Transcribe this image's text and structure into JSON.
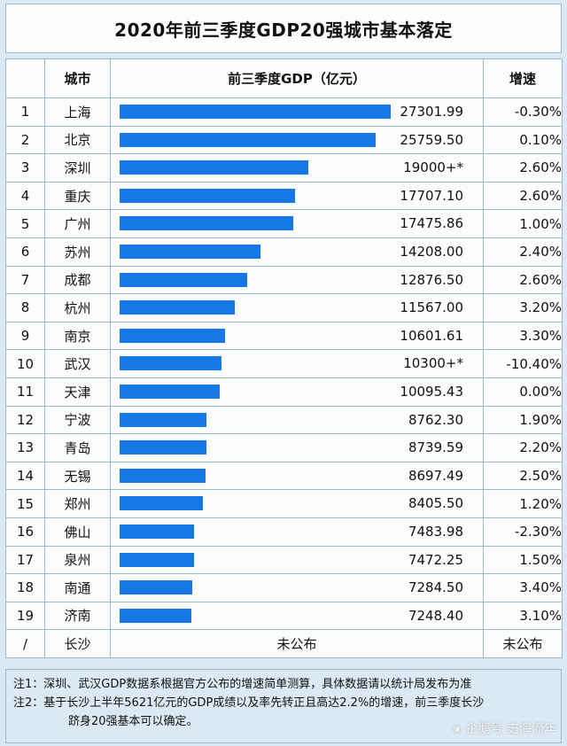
{
  "title": "2020年前三季度GDP20强城市基本落定",
  "headers": {
    "rank": "",
    "city": "城市",
    "gdp": "前三季度GDP（亿元）",
    "growth": "增速"
  },
  "chart_data": {
    "type": "bar",
    "title": "2020年前三季度GDP20强城市基本落定",
    "xlabel": "城市",
    "ylabel": "前三季度GDP（亿元）",
    "categories": [
      "上海",
      "北京",
      "深圳",
      "重庆",
      "广州",
      "苏州",
      "成都",
      "杭州",
      "南京",
      "武汉",
      "天津",
      "宁波",
      "青岛",
      "无锡",
      "郑州",
      "佛山",
      "泉州",
      "南通",
      "济南"
    ],
    "values": [
      27301.99,
      25759.5,
      19000,
      17707.1,
      17475.86,
      14208.0,
      12876.5,
      11567.0,
      10601.61,
      10300,
      10095.43,
      8762.3,
      8739.59,
      8697.49,
      8405.5,
      7483.98,
      7472.25,
      7284.5,
      7248.4
    ],
    "ylim": [
      0,
      27301.99
    ]
  },
  "rows": [
    {
      "rank": "1",
      "city": "上海",
      "gdp": "27301.99",
      "growth": "-0.30%"
    },
    {
      "rank": "2",
      "city": "北京",
      "gdp": "25759.50",
      "growth": "0.10%"
    },
    {
      "rank": "3",
      "city": "深圳",
      "gdp": "19000+*",
      "growth": "2.60%"
    },
    {
      "rank": "4",
      "city": "重庆",
      "gdp": "17707.10",
      "growth": "2.60%"
    },
    {
      "rank": "5",
      "city": "广州",
      "gdp": "17475.86",
      "growth": "1.00%"
    },
    {
      "rank": "6",
      "city": "苏州",
      "gdp": "14208.00",
      "growth": "2.40%"
    },
    {
      "rank": "7",
      "city": "成都",
      "gdp": "12876.50",
      "growth": "2.60%"
    },
    {
      "rank": "8",
      "city": "杭州",
      "gdp": "11567.00",
      "growth": "3.20%"
    },
    {
      "rank": "9",
      "city": "南京",
      "gdp": "10601.61",
      "growth": "3.30%"
    },
    {
      "rank": "10",
      "city": "武汉",
      "gdp": "10300+*",
      "growth": "-10.40%"
    },
    {
      "rank": "11",
      "city": "天津",
      "gdp": "10095.43",
      "growth": "0.00%"
    },
    {
      "rank": "12",
      "city": "宁波",
      "gdp": "8762.30",
      "growth": "1.90%"
    },
    {
      "rank": "13",
      "city": "青岛",
      "gdp": "8739.59",
      "growth": "2.20%"
    },
    {
      "rank": "14",
      "city": "无锡",
      "gdp": "8697.49",
      "growth": "2.50%"
    },
    {
      "rank": "15",
      "city": "郑州",
      "gdp": "8405.50",
      "growth": "1.20%"
    },
    {
      "rank": "16",
      "city": "佛山",
      "gdp": "7483.98",
      "growth": "-2.30%"
    },
    {
      "rank": "17",
      "city": "泉州",
      "gdp": "7472.25",
      "growth": "1.50%"
    },
    {
      "rank": "18",
      "city": "南通",
      "gdp": "7284.50",
      "growth": "3.40%"
    },
    {
      "rank": "19",
      "city": "济南",
      "gdp": "7248.40",
      "growth": "3.10%"
    }
  ],
  "last_row": {
    "rank": "/",
    "city": "长沙",
    "gdp": "未公布",
    "growth": "未公布"
  },
  "notes": {
    "note1": "注1：深圳、武汉GDP数据系根据官方公布的增速简单测算，具体数据请以统计局发布为准",
    "note2": "注2：基于长沙上半年5621亿元的GDP成绩以及率先转正且高达2.2%的增速，前三季度长沙",
    "note3": "跻身20强基本可以确定。"
  },
  "watermark": "企鹅号 史海流年",
  "colors": {
    "bar": "#1677e6",
    "background": "#dce9f5",
    "border": "#9fb6cf"
  }
}
